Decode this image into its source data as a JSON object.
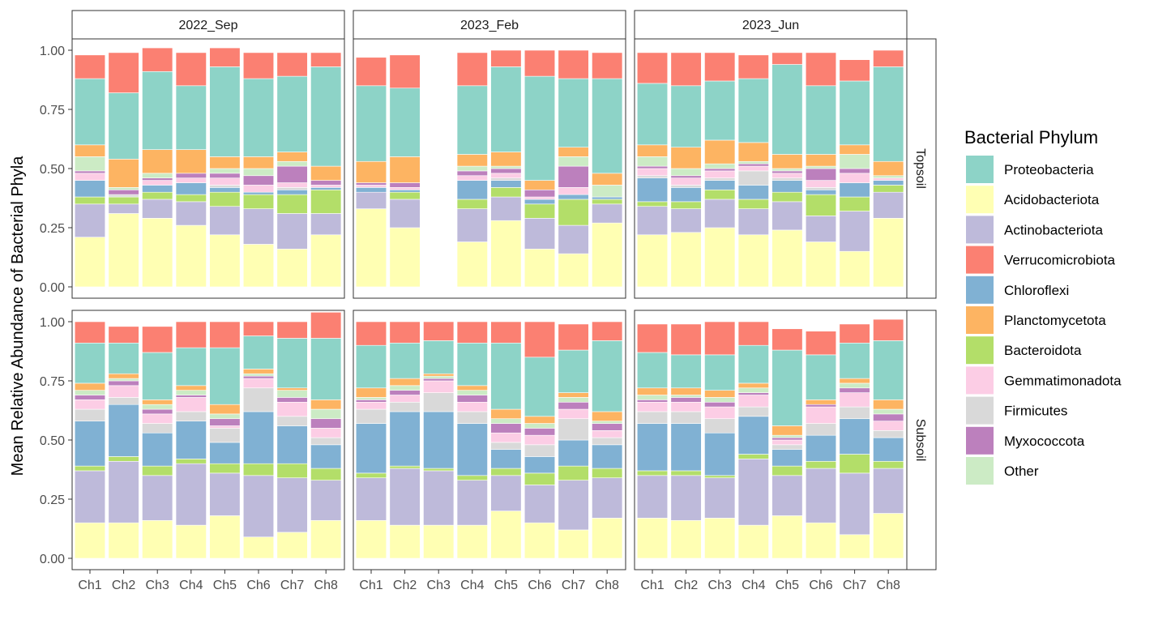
{
  "chart_data": {
    "type": "bar",
    "stacked": true,
    "ylabel": "Mean Relative Abundance of Bacterial Phyla",
    "xlabel": "",
    "ylim": [
      0,
      1
    ],
    "yticks": [
      "0.00",
      "0.25",
      "0.50",
      "0.75",
      "1.00"
    ],
    "yticks_values": [
      0,
      0.25,
      0.5,
      0.75,
      1
    ],
    "categories": [
      "Ch1",
      "Ch2",
      "Ch3",
      "Ch4",
      "Ch5",
      "Ch6",
      "Ch7",
      "Ch8"
    ],
    "columns": [
      "2022_Sep",
      "2023_Feb",
      "2023_Jun"
    ],
    "rows": [
      "Topsoil",
      "Subsoil"
    ],
    "legend": {
      "title": "Bacterial Phylum",
      "placement": "right",
      "items": [
        {
          "name": "Proteobacteria",
          "color": "#8DD3C7"
        },
        {
          "name": "Acidobacteriota",
          "color": "#FFFFB3"
        },
        {
          "name": "Actinobacteriota",
          "color": "#BEBADA"
        },
        {
          "name": "Verrucomicrobiota",
          "color": "#FB8072"
        },
        {
          "name": "Chloroflexi",
          "color": "#80B1D3"
        },
        {
          "name": "Planctomycetota",
          "color": "#FDB462"
        },
        {
          "name": "Bacteroidota",
          "color": "#B3DE69"
        },
        {
          "name": "Gemmatimonadota",
          "color": "#FCCDE5"
        },
        {
          "name": "Firmicutes",
          "color": "#D9D9D9"
        },
        {
          "name": "Myxococcota",
          "color": "#BC80BD"
        },
        {
          "name": "Other",
          "color": "#CCEBC5"
        }
      ]
    },
    "stack_order_bottom_to_top": [
      "Acidobacteriota",
      "Actinobacteriota",
      "Bacteroidota",
      "Chloroflexi",
      "Firmicutes",
      "Gemmatimonadota",
      "Myxococcota",
      "Other",
      "Planctomycetota",
      "Proteobacteria",
      "Verrucomicrobiota"
    ],
    "panels": [
      {
        "column": "2022_Sep",
        "row": "Topsoil",
        "bars": [
          [
            0.21,
            0.14,
            0.03,
            0.07,
            0.0,
            0.03,
            0.01,
            0.06,
            0.05,
            0.28,
            0.1
          ],
          [
            0.31,
            0.04,
            0.03,
            0.0,
            0.01,
            0.0,
            0.02,
            0.01,
            0.12,
            0.28,
            0.17
          ],
          [
            0.29,
            0.08,
            0.03,
            0.03,
            0.0,
            0.02,
            0.01,
            0.02,
            0.1,
            0.33,
            0.1
          ],
          [
            0.26,
            0.1,
            0.03,
            0.05,
            0.0,
            0.02,
            0.02,
            0.0,
            0.1,
            0.27,
            0.14
          ],
          [
            0.22,
            0.12,
            0.06,
            0.02,
            0.01,
            0.03,
            0.02,
            0.02,
            0.05,
            0.38,
            0.08
          ],
          [
            0.18,
            0.15,
            0.06,
            0.01,
            0.0,
            0.03,
            0.04,
            0.03,
            0.05,
            0.33,
            0.11
          ],
          [
            0.16,
            0.15,
            0.08,
            0.02,
            0.01,
            0.02,
            0.07,
            0.02,
            0.04,
            0.32,
            0.1
          ],
          [
            0.22,
            0.09,
            0.1,
            0.01,
            0.0,
            0.01,
            0.02,
            0.0,
            0.06,
            0.42,
            0.06
          ]
        ]
      },
      {
        "column": "2023_Feb",
        "row": "Topsoil",
        "bars": [
          [
            0.33,
            0.07,
            0.0,
            0.02,
            0.0,
            0.01,
            0.01,
            0.0,
            0.09,
            0.32,
            0.12
          ],
          [
            0.25,
            0.12,
            0.03,
            0.01,
            0.0,
            0.01,
            0.02,
            0.0,
            0.11,
            0.29,
            0.14
          ],
          [
            0.0,
            0.0,
            0.0,
            0.0,
            0.0,
            0.0,
            0.0,
            0.0,
            0.0,
            0.0,
            0.0
          ],
          [
            0.19,
            0.14,
            0.04,
            0.08,
            0.0,
            0.02,
            0.02,
            0.02,
            0.05,
            0.29,
            0.14
          ],
          [
            0.28,
            0.1,
            0.04,
            0.03,
            0.01,
            0.02,
            0.02,
            0.01,
            0.06,
            0.36,
            0.07
          ],
          [
            0.16,
            0.13,
            0.06,
            0.02,
            0.0,
            0.01,
            0.03,
            0.0,
            0.04,
            0.44,
            0.11
          ],
          [
            0.14,
            0.12,
            0.11,
            0.02,
            0.0,
            0.03,
            0.09,
            0.04,
            0.04,
            0.29,
            0.12
          ],
          [
            0.27,
            0.08,
            0.02,
            0.01,
            0.0,
            0.0,
            0.0,
            0.05,
            0.05,
            0.4,
            0.11
          ]
        ]
      },
      {
        "column": "2023_Jun",
        "row": "Topsoil",
        "bars": [
          [
            0.22,
            0.12,
            0.02,
            0.1,
            0.01,
            0.03,
            0.01,
            0.04,
            0.05,
            0.26,
            0.13
          ],
          [
            0.23,
            0.1,
            0.03,
            0.06,
            0.01,
            0.03,
            0.01,
            0.03,
            0.09,
            0.26,
            0.14
          ],
          [
            0.25,
            0.12,
            0.04,
            0.04,
            0.01,
            0.03,
            0.01,
            0.02,
            0.1,
            0.25,
            0.12
          ],
          [
            0.22,
            0.11,
            0.04,
            0.06,
            0.06,
            0.02,
            0.01,
            0.01,
            0.08,
            0.27,
            0.1
          ],
          [
            0.24,
            0.12,
            0.04,
            0.05,
            0.01,
            0.02,
            0.01,
            0.01,
            0.06,
            0.38,
            0.05
          ],
          [
            0.19,
            0.11,
            0.09,
            0.02,
            0.01,
            0.03,
            0.05,
            0.01,
            0.05,
            0.29,
            0.14
          ],
          [
            0.15,
            0.17,
            0.06,
            0.06,
            0.0,
            0.04,
            0.02,
            0.06,
            0.04,
            0.27,
            0.09
          ],
          [
            0.29,
            0.11,
            0.03,
            0.02,
            0.0,
            0.01,
            0.0,
            0.01,
            0.06,
            0.4,
            0.07
          ]
        ]
      },
      {
        "column": "2022_Sep",
        "row": "Subsoil",
        "bars": [
          [
            0.15,
            0.22,
            0.02,
            0.19,
            0.05,
            0.04,
            0.02,
            0.02,
            0.03,
            0.17,
            0.09
          ],
          [
            0.15,
            0.26,
            0.02,
            0.22,
            0.03,
            0.05,
            0.02,
            0.01,
            0.02,
            0.13,
            0.07
          ],
          [
            0.16,
            0.19,
            0.04,
            0.14,
            0.04,
            0.04,
            0.02,
            0.02,
            0.02,
            0.2,
            0.11
          ],
          [
            0.14,
            0.26,
            0.02,
            0.16,
            0.04,
            0.06,
            0.01,
            0.02,
            0.02,
            0.16,
            0.11
          ],
          [
            0.18,
            0.18,
            0.04,
            0.09,
            0.06,
            0.01,
            0.03,
            0.02,
            0.04,
            0.24,
            0.11
          ],
          [
            0.09,
            0.26,
            0.05,
            0.22,
            0.1,
            0.04,
            0.01,
            0.01,
            0.02,
            0.14,
            0.06
          ],
          [
            0.11,
            0.23,
            0.06,
            0.16,
            0.04,
            0.06,
            0.02,
            0.03,
            0.01,
            0.21,
            0.07
          ],
          [
            0.16,
            0.17,
            0.05,
            0.1,
            0.03,
            0.04,
            0.04,
            0.04,
            0.04,
            0.26,
            0.11
          ]
        ]
      },
      {
        "column": "2023_Feb",
        "row": "Subsoil",
        "bars": [
          [
            0.16,
            0.18,
            0.02,
            0.21,
            0.06,
            0.03,
            0.01,
            0.01,
            0.04,
            0.18,
            0.1
          ],
          [
            0.14,
            0.24,
            0.01,
            0.23,
            0.04,
            0.03,
            0.02,
            0.02,
            0.03,
            0.15,
            0.09
          ],
          [
            0.14,
            0.23,
            0.01,
            0.24,
            0.08,
            0.05,
            0.01,
            0.01,
            0.01,
            0.14,
            0.08
          ],
          [
            0.14,
            0.19,
            0.02,
            0.22,
            0.05,
            0.04,
            0.03,
            0.02,
            0.02,
            0.18,
            0.09
          ],
          [
            0.2,
            0.15,
            0.03,
            0.08,
            0.03,
            0.04,
            0.04,
            0.02,
            0.04,
            0.28,
            0.09
          ],
          [
            0.15,
            0.16,
            0.05,
            0.07,
            0.05,
            0.04,
            0.03,
            0.02,
            0.03,
            0.25,
            0.15
          ],
          [
            0.12,
            0.21,
            0.06,
            0.11,
            0.09,
            0.04,
            0.03,
            0.02,
            0.02,
            0.18,
            0.11
          ],
          [
            0.17,
            0.17,
            0.04,
            0.1,
            0.03,
            0.03,
            0.03,
            0.01,
            0.04,
            0.3,
            0.08
          ]
        ]
      },
      {
        "column": "2023_Jun",
        "row": "Subsoil",
        "bars": [
          [
            0.17,
            0.18,
            0.02,
            0.2,
            0.05,
            0.04,
            0.01,
            0.02,
            0.03,
            0.15,
            0.12
          ],
          [
            0.16,
            0.19,
            0.02,
            0.2,
            0.05,
            0.04,
            0.02,
            0.01,
            0.03,
            0.14,
            0.13
          ],
          [
            0.17,
            0.17,
            0.01,
            0.18,
            0.06,
            0.05,
            0.02,
            0.02,
            0.03,
            0.15,
            0.14
          ],
          [
            0.14,
            0.28,
            0.02,
            0.16,
            0.04,
            0.05,
            0.01,
            0.02,
            0.02,
            0.16,
            0.1
          ],
          [
            0.18,
            0.17,
            0.04,
            0.07,
            0.02,
            0.02,
            0.01,
            0.01,
            0.04,
            0.32,
            0.09
          ],
          [
            0.15,
            0.23,
            0.03,
            0.11,
            0.05,
            0.07,
            0.01,
            0.0,
            0.02,
            0.19,
            0.1
          ],
          [
            0.1,
            0.26,
            0.08,
            0.15,
            0.05,
            0.06,
            0.02,
            0.02,
            0.02,
            0.15,
            0.08
          ],
          [
            0.19,
            0.19,
            0.03,
            0.1,
            0.03,
            0.04,
            0.03,
            0.02,
            0.04,
            0.25,
            0.09
          ]
        ]
      }
    ]
  }
}
